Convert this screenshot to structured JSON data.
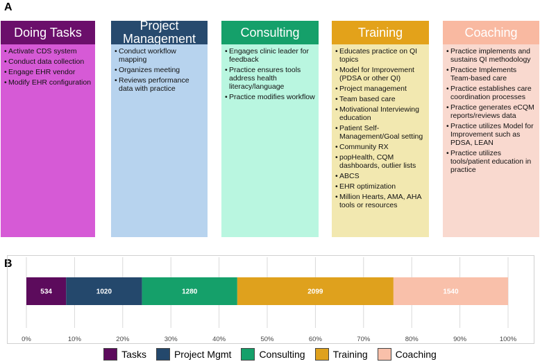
{
  "panel_a_letter": "A",
  "panel_b_letter": "B",
  "columns": [
    {
      "title": "Doing Tasks",
      "header_color": "#6b0f6b",
      "body_color": "#d65ad6",
      "items": [
        "Activate CDS system",
        "Conduct data collection",
        "Engage EHR vendor",
        "Modify EHR configuration"
      ]
    },
    {
      "title": "Project Management",
      "header_color": "#274a6e",
      "body_color": "#b7d3ee",
      "items": [
        "Conduct workflow mapping",
        "Organizes meeting",
        "Reviews performance data with practice"
      ]
    },
    {
      "title": "Consulting",
      "header_color": "#15a06a",
      "body_color": "#b9f6e0",
      "items": [
        "Engages clinic leader for feedback",
        "Practice ensures tools address health literacy/language",
        "Practice modifies workflow"
      ]
    },
    {
      "title": "Training",
      "header_color": "#e3a21a",
      "body_color": "#f2e8b0",
      "items": [
        "Educates practice on QI topics",
        "Model for Improvement (PDSA or other QI)",
        "Project management",
        "Team based care",
        "Motivational Interviewing education",
        "Patient Self-Management/Goal setting",
        "Community RX",
        "popHealth, CQM dashboards, outlier lists",
        "ABCS",
        "EHR optimization",
        "Million Hearts, AMA, AHA tools or resources"
      ]
    },
    {
      "title": "Coaching",
      "header_color": "#f9b9a1",
      "body_color": "#f9d9cf",
      "items": [
        "Practice implements and sustains QI methodology",
        "Practice Implements Team-based care",
        "Practice establishes care coordination processes",
        "Practice generates eCQM reports/reviews data",
        "Practice utilizes Model for Improvement such as PDSA, LEAN",
        "Practice utilizes tools/patient education in practice"
      ]
    }
  ],
  "chart_data": {
    "type": "bar",
    "orientation": "horizontal",
    "stacked": "percent",
    "xlim": [
      0,
      100
    ],
    "xticks": [
      "0%",
      "10%",
      "20%",
      "30%",
      "40%",
      "50%",
      "60%",
      "70%",
      "80%",
      "90%",
      "100%"
    ],
    "grid": true,
    "legend_position": "bottom",
    "series": [
      {
        "name": "Tasks",
        "value": 534,
        "label": "534",
        "color": "#5c0b5c"
      },
      {
        "name": "Project Mgmt",
        "value": 1020,
        "label": "1020",
        "color": "#24486c"
      },
      {
        "name": "Consulting",
        "value": 1280,
        "label": "1280",
        "color": "#15a06a"
      },
      {
        "name": "Training",
        "value": 2099,
        "label": "2099",
        "color": "#dfa11d"
      },
      {
        "name": "Coaching",
        "value": 1540,
        "label": "1540",
        "color": "#f9c0aa"
      }
    ]
  }
}
